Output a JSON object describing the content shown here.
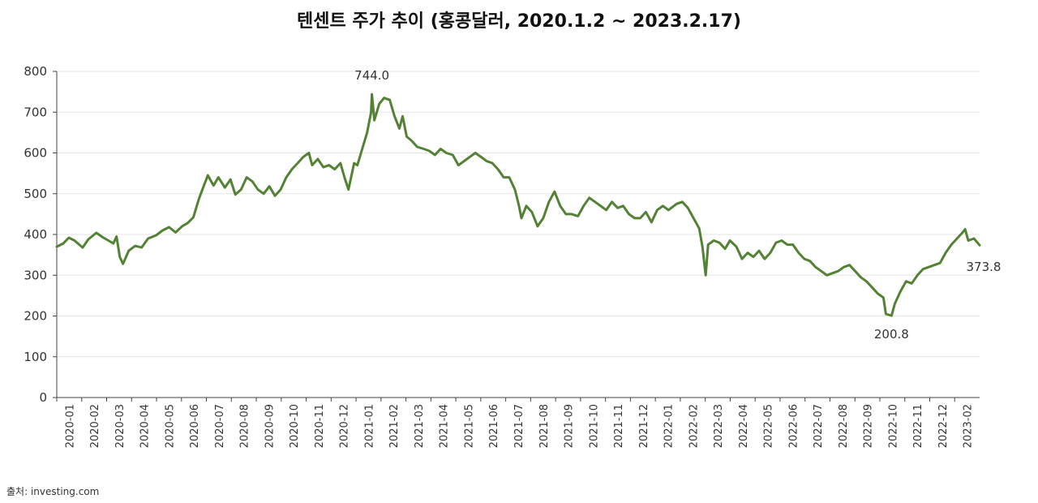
{
  "chart_data": {
    "type": "line",
    "title": "텐센트 주가 추이 (홍콩달러, 2020.1.2 ~ 2023.2.17)",
    "source": "출처: investing.com",
    "xlabel": "",
    "ylabel": "",
    "ylim": [
      0,
      800
    ],
    "yticks": [
      "0",
      "100",
      "200",
      "300",
      "400",
      "500",
      "600",
      "700",
      "800"
    ],
    "xticks": [
      "2020-01",
      "2020-02",
      "2020-03",
      "2020-04",
      "2020-05",
      "2020-06",
      "2020-07",
      "2020-08",
      "2020-09",
      "2020-10",
      "2020-11",
      "2020-12",
      "2021-01",
      "2021-02",
      "2021-03",
      "2021-04",
      "2021-05",
      "2021-06",
      "2021-07",
      "2021-08",
      "2021-09",
      "2021-10",
      "2021-11",
      "2021-12",
      "2022-01",
      "2022-02",
      "2022-03",
      "2022-04",
      "2022-05",
      "2022-06",
      "2022-07",
      "2022-08",
      "2022-09",
      "2022-10",
      "2022-11",
      "2022-12",
      "2023-02"
    ],
    "grid": "horizontal",
    "line_color": "#548235",
    "series": [
      {
        "values": [
          [
            "2020-01-02",
            370
          ],
          [
            "2020-01-10",
            378
          ],
          [
            "2020-01-17",
            392
          ],
          [
            "2020-01-24",
            385
          ],
          [
            "2020-02-03",
            368
          ],
          [
            "2020-02-10",
            388
          ],
          [
            "2020-02-20",
            404
          ],
          [
            "2020-02-28",
            393
          ],
          [
            "2020-03-06",
            385
          ],
          [
            "2020-03-12",
            378
          ],
          [
            "2020-03-16",
            395
          ],
          [
            "2020-03-20",
            345
          ],
          [
            "2020-03-24",
            328
          ],
          [
            "2020-03-31",
            360
          ],
          [
            "2020-04-08",
            372
          ],
          [
            "2020-04-16",
            368
          ],
          [
            "2020-04-24",
            390
          ],
          [
            "2020-05-04",
            398
          ],
          [
            "2020-05-12",
            410
          ],
          [
            "2020-05-20",
            418
          ],
          [
            "2020-05-28",
            405
          ],
          [
            "2020-06-05",
            420
          ],
          [
            "2020-06-12",
            428
          ],
          [
            "2020-06-19",
            442
          ],
          [
            "2020-06-26",
            488
          ],
          [
            "2020-07-03",
            525
          ],
          [
            "2020-07-07",
            545
          ],
          [
            "2020-07-14",
            520
          ],
          [
            "2020-07-20",
            540
          ],
          [
            "2020-07-28",
            515
          ],
          [
            "2020-08-04",
            535
          ],
          [
            "2020-08-10",
            498
          ],
          [
            "2020-08-17",
            510
          ],
          [
            "2020-08-24",
            540
          ],
          [
            "2020-08-31",
            530
          ],
          [
            "2020-09-07",
            510
          ],
          [
            "2020-09-14",
            500
          ],
          [
            "2020-09-21",
            518
          ],
          [
            "2020-09-28",
            495
          ],
          [
            "2020-10-05",
            510
          ],
          [
            "2020-10-12",
            540
          ],
          [
            "2020-10-19",
            560
          ],
          [
            "2020-10-26",
            575
          ],
          [
            "2020-11-02",
            590
          ],
          [
            "2020-11-09",
            600
          ],
          [
            "2020-11-13",
            570
          ],
          [
            "2020-11-20",
            585
          ],
          [
            "2020-11-27",
            565
          ],
          [
            "2020-12-04",
            570
          ],
          [
            "2020-12-11",
            560
          ],
          [
            "2020-12-18",
            575
          ],
          [
            "2020-12-23",
            540
          ],
          [
            "2020-12-28",
            510
          ],
          [
            "2021-01-04",
            575
          ],
          [
            "2021-01-08",
            570
          ],
          [
            "2021-01-14",
            610
          ],
          [
            "2021-01-20",
            650
          ],
          [
            "2021-01-25",
            700
          ],
          [
            "2021-01-26",
            744
          ],
          [
            "2021-01-29",
            680
          ],
          [
            "2021-02-04",
            720
          ],
          [
            "2021-02-10",
            735
          ],
          [
            "2021-02-17",
            730
          ],
          [
            "2021-02-23",
            690
          ],
          [
            "2021-03-01",
            660
          ],
          [
            "2021-03-05",
            690
          ],
          [
            "2021-03-10",
            640
          ],
          [
            "2021-03-16",
            630
          ],
          [
            "2021-03-23",
            615
          ],
          [
            "2021-03-31",
            610
          ],
          [
            "2021-04-07",
            605
          ],
          [
            "2021-04-14",
            595
          ],
          [
            "2021-04-21",
            610
          ],
          [
            "2021-04-28",
            600
          ],
          [
            "2021-05-06",
            595
          ],
          [
            "2021-05-13",
            570
          ],
          [
            "2021-05-20",
            580
          ],
          [
            "2021-05-27",
            590
          ],
          [
            "2021-06-03",
            600
          ],
          [
            "2021-06-10",
            590
          ],
          [
            "2021-06-17",
            580
          ],
          [
            "2021-06-24",
            575
          ],
          [
            "2021-07-01",
            560
          ],
          [
            "2021-07-08",
            540
          ],
          [
            "2021-07-15",
            540
          ],
          [
            "2021-07-22",
            510
          ],
          [
            "2021-07-27",
            470
          ],
          [
            "2021-07-30",
            440
          ],
          [
            "2021-08-05",
            470
          ],
          [
            "2021-08-12",
            455
          ],
          [
            "2021-08-19",
            420
          ],
          [
            "2021-08-26",
            440
          ],
          [
            "2021-09-02",
            480
          ],
          [
            "2021-09-09",
            505
          ],
          [
            "2021-09-16",
            470
          ],
          [
            "2021-09-23",
            450
          ],
          [
            "2021-09-30",
            450
          ],
          [
            "2021-10-08",
            445
          ],
          [
            "2021-10-15",
            470
          ],
          [
            "2021-10-22",
            490
          ],
          [
            "2021-10-29",
            480
          ],
          [
            "2021-11-05",
            470
          ],
          [
            "2021-11-12",
            460
          ],
          [
            "2021-11-19",
            480
          ],
          [
            "2021-11-26",
            465
          ],
          [
            "2021-12-03",
            470
          ],
          [
            "2021-12-10",
            450
          ],
          [
            "2021-12-17",
            440
          ],
          [
            "2021-12-24",
            440
          ],
          [
            "2021-12-31",
            455
          ],
          [
            "2022-01-07",
            430
          ],
          [
            "2022-01-14",
            460
          ],
          [
            "2022-01-21",
            470
          ],
          [
            "2022-01-28",
            460
          ],
          [
            "2022-02-07",
            475
          ],
          [
            "2022-02-14",
            480
          ],
          [
            "2022-02-21",
            465
          ],
          [
            "2022-02-28",
            440
          ],
          [
            "2022-03-07",
            415
          ],
          [
            "2022-03-11",
            370
          ],
          [
            "2022-03-15",
            300
          ],
          [
            "2022-03-18",
            375
          ],
          [
            "2022-03-25",
            385
          ],
          [
            "2022-04-01",
            380
          ],
          [
            "2022-04-08",
            365
          ],
          [
            "2022-04-14",
            385
          ],
          [
            "2022-04-22",
            370
          ],
          [
            "2022-04-29",
            340
          ],
          [
            "2022-05-06",
            355
          ],
          [
            "2022-05-13",
            345
          ],
          [
            "2022-05-20",
            360
          ],
          [
            "2022-05-27",
            340
          ],
          [
            "2022-06-03",
            355
          ],
          [
            "2022-06-10",
            380
          ],
          [
            "2022-06-17",
            385
          ],
          [
            "2022-06-24",
            375
          ],
          [
            "2022-07-01",
            375
          ],
          [
            "2022-07-08",
            355
          ],
          [
            "2022-07-15",
            340
          ],
          [
            "2022-07-22",
            335
          ],
          [
            "2022-07-29",
            320
          ],
          [
            "2022-08-05",
            310
          ],
          [
            "2022-08-12",
            300
          ],
          [
            "2022-08-19",
            305
          ],
          [
            "2022-08-26",
            310
          ],
          [
            "2022-09-02",
            320
          ],
          [
            "2022-09-09",
            325
          ],
          [
            "2022-09-16",
            310
          ],
          [
            "2022-09-23",
            295
          ],
          [
            "2022-09-30",
            285
          ],
          [
            "2022-10-07",
            270
          ],
          [
            "2022-10-14",
            255
          ],
          [
            "2022-10-21",
            245
          ],
          [
            "2022-10-24",
            205
          ],
          [
            "2022-10-31",
            200.8
          ],
          [
            "2022-11-04",
            230
          ],
          [
            "2022-11-11",
            260
          ],
          [
            "2022-11-18",
            285
          ],
          [
            "2022-11-25",
            280
          ],
          [
            "2022-12-02",
            300
          ],
          [
            "2022-12-09",
            315
          ],
          [
            "2022-12-16",
            320
          ],
          [
            "2022-12-23",
            325
          ],
          [
            "2022-12-30",
            330
          ],
          [
            "2023-01-06",
            355
          ],
          [
            "2023-01-13",
            375
          ],
          [
            "2023-01-20",
            390
          ],
          [
            "2023-01-27",
            405
          ],
          [
            "2023-01-30",
            413
          ],
          [
            "2023-02-03",
            385
          ],
          [
            "2023-02-10",
            390
          ],
          [
            "2023-02-17",
            373.8
          ]
        ]
      }
    ],
    "annotations": [
      {
        "text": "744.0",
        "x": "2021-01-26",
        "y": 744.0
      },
      {
        "text": "200.8",
        "x": "2022-10-31",
        "y": 200.8
      },
      {
        "text": "373.8",
        "x": "2023-02-17",
        "y": 373.8
      }
    ]
  }
}
